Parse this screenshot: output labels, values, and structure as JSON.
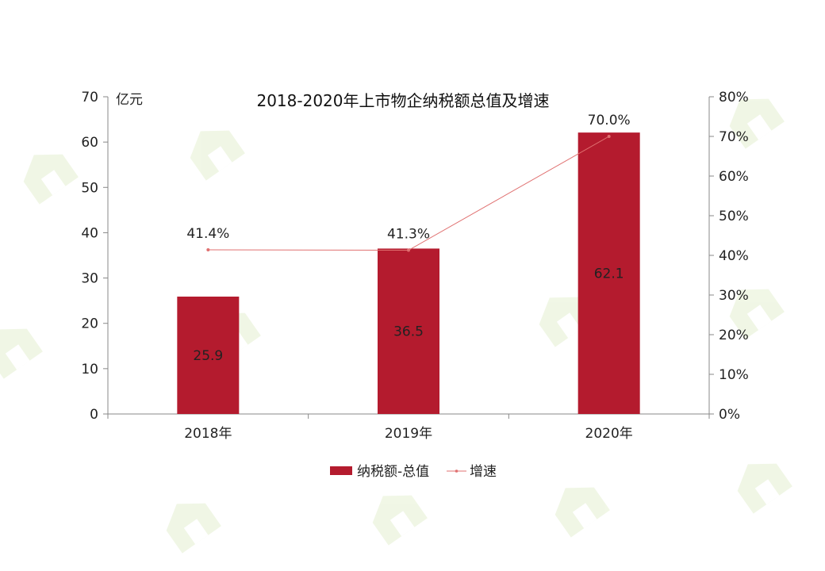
{
  "chart_data": {
    "type": "bar",
    "title": "2018-2020年上市物企纳税额总值及增速",
    "categories": [
      "2018年",
      "2019年",
      "2020年"
    ],
    "y_left": {
      "unit_label": "亿元",
      "ylim": [
        0,
        70
      ],
      "ticks": [
        "0",
        "10",
        "20",
        "30",
        "40",
        "50",
        "60",
        "70"
      ]
    },
    "y_right": {
      "ylim": [
        0,
        80
      ],
      "ticks": [
        "0%",
        "10%",
        "20%",
        "30%",
        "40%",
        "50%",
        "60%",
        "70%",
        "80%"
      ]
    },
    "series": [
      {
        "name": "纳税额-总值",
        "type": "bar",
        "axis": "left",
        "values": [
          25.9,
          36.5,
          62.1
        ],
        "data_labels": [
          "25.9",
          "36.5",
          "62.1"
        ],
        "color": "#b41b2e"
      },
      {
        "name": "增速",
        "type": "line",
        "axis": "right",
        "values": [
          41.4,
          41.3,
          70.0
        ],
        "data_labels": [
          "41.4%",
          "41.3%",
          "70.0%"
        ],
        "color": "#e07070"
      }
    ],
    "legend_position": "bottom",
    "grid": false
  }
}
